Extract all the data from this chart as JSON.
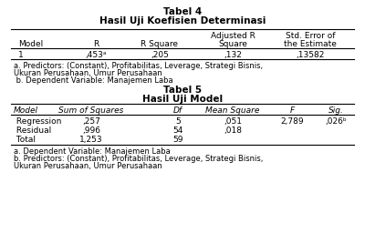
{
  "tabel4_title1": "Tabel 4",
  "tabel4_title2": "Hasil Uji Koefisien Determinasi",
  "tabel4_col_headers_line1": [
    "",
    "",
    "",
    "Adjusted R",
    "Std. Error of"
  ],
  "tabel4_col_headers_line2": [
    "Model",
    "R",
    "R Square",
    "Square",
    "the Estimate"
  ],
  "tabel4_row": [
    "1",
    ",453ᵃ",
    ",205",
    ",132",
    ",13582"
  ],
  "tabel4_note1": "a. Predictors: (Constant), Profitabilitas, Leverage, Strategi Bisnis,",
  "tabel4_note2": "Ukuran Perusahaan, Umur Perusahaan",
  "tabel4_note3": " b. Dependent Variable: Manajemen Laba",
  "tabel5_title1": "Tabel 5",
  "tabel5_title2": "Hasil Uji Model",
  "tabel5_headers": [
    "Model",
    "Sum of Squares",
    "Df",
    "Mean Square",
    "F",
    "Sig."
  ],
  "tabel5_rows": [
    [
      " Regression",
      ",257",
      "5",
      ",051",
      "2,789",
      ",026ᵇ"
    ],
    [
      " Residual",
      ",996",
      "54",
      ",018",
      "",
      ""
    ],
    [
      " Total",
      "1,253",
      "59",
      "",
      "",
      ""
    ]
  ],
  "tabel5_note1": "a. Dependent Variable: Manajemen Laba",
  "tabel5_note2": "b. Predictors: (Constant), Profitabilitas, Leverage, Strategi Bisnis,",
  "tabel5_note3": "Ukuran Perusahaan, Umur Perusahaan",
  "bg_color": "#ffffff",
  "font_size": 6.5,
  "title_font_size": 7.5
}
